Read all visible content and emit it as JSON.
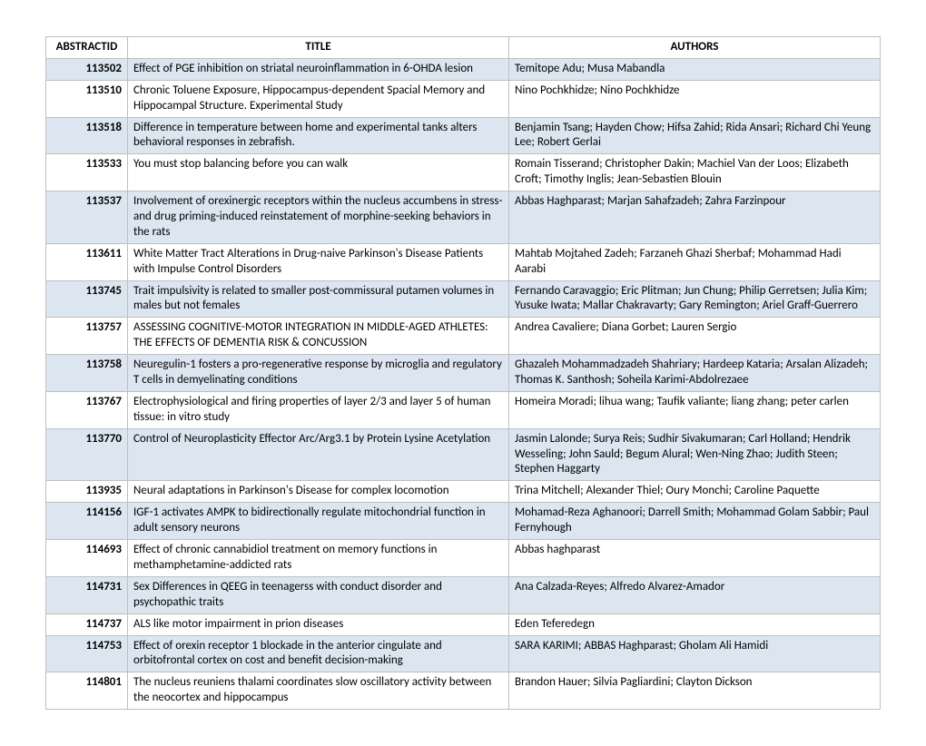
{
  "table": {
    "columns": [
      "ABSTRACTID",
      "TITLE",
      "AUTHORS"
    ],
    "alt_row_bg": "#dce6f1",
    "border_color": "#bfbfbf",
    "rows": [
      {
        "id": "113502",
        "title": "Effect of PGE inhibition on striatal neuroinflammation in 6-OHDA lesion",
        "authors": "Temitope Adu; Musa Mabandla"
      },
      {
        "id": "113510",
        "title": "Chronic Toluene Exposure, Hippocampus-dependent Spacial Memory and Hippocampal Structure. Experimental Study",
        "authors": "Nino Pochkhidze; Nino Pochkhidze"
      },
      {
        "id": "113518",
        "title": "Difference in temperature between home and experimental tanks alters behavioral responses in zebrafish.",
        "authors": "Benjamin Tsang; Hayden Chow; Hifsa Zahid; Rida Ansari; Richard Chi Yeung Lee; Robert Gerlai"
      },
      {
        "id": "113533",
        "title": "You must stop balancing before you can walk",
        "authors": "Romain Tisserand; Christopher Dakin; Machiel Van der Loos; Elizabeth Croft; Timothy Inglis; Jean-Sebastien Blouin"
      },
      {
        "id": "113537",
        "title": "Involvement of orexinergic receptors within the nucleus accumbens in stress- and drug priming-induced reinstatement of morphine-seeking behaviors in the rats",
        "authors": "Abbas Haghparast; Marjan Sahafzadeh; Zahra Farzinpour"
      },
      {
        "id": "113611",
        "title": "White Matter Tract Alterations in Drug-naive Parkinson's Disease Patients with Impulse Control Disorders",
        "authors": "Mahtab Mojtahed Zadeh; Farzaneh Ghazi Sherbaf; Mohammad Hadi Aarabi"
      },
      {
        "id": "113745",
        "title": "Trait impulsivity is related to smaller post-commissural putamen volumes in males but not females",
        "authors": "Fernando Caravaggio; Eric Plitman; Jun Chung; Philip Gerretsen; Julia Kim; Yusuke Iwata; Mallar Chakravarty; Gary Remington; Ariel Graff-Guerrero"
      },
      {
        "id": "113757",
        "title": "ASSESSING COGNITIVE-MOTOR INTEGRATION IN MIDDLE-AGED ATHLETES: THE EFFECTS OF DEMENTIA RISK & CONCUSSION",
        "authors": "Andrea Cavaliere; Diana Gorbet; Lauren Sergio"
      },
      {
        "id": "113758",
        "title": "Neuregulin-1 fosters a pro-regenerative response by microglia and regulatory T cells in demyelinating conditions",
        "authors": "Ghazaleh Mohammadzadeh Shahriary; Hardeep Kataria; Arsalan Alizadeh; Thomas K. Santhosh; Soheila Karimi-Abdolrezaee"
      },
      {
        "id": "113767",
        "title": "Electrophysiological and firing properties of layer 2/3 and layer 5 of human tissue: in vitro study",
        "authors": "Homeira Moradi; lihua wang; Taufik valiante; liang zhang; peter carlen"
      },
      {
        "id": "113770",
        "title": "Control of Neuroplasticity Effector Arc/Arg3.1 by Protein Lysine Acetylation",
        "authors": "Jasmin Lalonde; Surya Reis; Sudhir Sivakumaran; Carl Holland; Hendrik Wesseling; John Sauld; Begum Alural; Wen-Ning Zhao; Judith Steen; Stephen Haggarty"
      },
      {
        "id": "113935",
        "title": "Neural adaptations in Parkinson's Disease for complex locomotion",
        "authors": "Trina Mitchell; Alexander Thiel; Oury Monchi; Caroline Paquette"
      },
      {
        "id": "114156",
        "title": "IGF-1 activates AMPK to bidirectionally regulate mitochondrial function in adult sensory neurons",
        "authors": "Mohamad-Reza Aghanoori; Darrell Smith; Mohammad Golam Sabbir; Paul Fernyhough"
      },
      {
        "id": "114693",
        "title": "Effect of chronic cannabidiol treatment on memory functions in methamphetamine-addicted rats",
        "authors": "Abbas haghparast"
      },
      {
        "id": "114731",
        "title": "Sex Differences in QEEG in teenagerss with conduct disorder and psychopathic traits",
        "authors": "Ana Calzada-Reyes; Alfredo Alvarez-Amador"
      },
      {
        "id": "114737",
        "title": "ALS like motor impairment in prion diseases",
        "authors": "Eden Teferedegn"
      },
      {
        "id": "114753",
        "title": "Effect of orexin receptor 1 blockade in the anterior cingulate and orbitofrontal cortex on cost and benefit decision-making",
        "authors": "SARA KARIMI; ABBAS Haghparast; Gholam Ali Hamidi"
      },
      {
        "id": "114801",
        "title": "The nucleus reuniens thalami coordinates slow oscillatory activity between the neocortex and hippocampus",
        "authors": "Brandon Hauer; Silvia Pagliardini; Clayton Dickson"
      }
    ]
  }
}
